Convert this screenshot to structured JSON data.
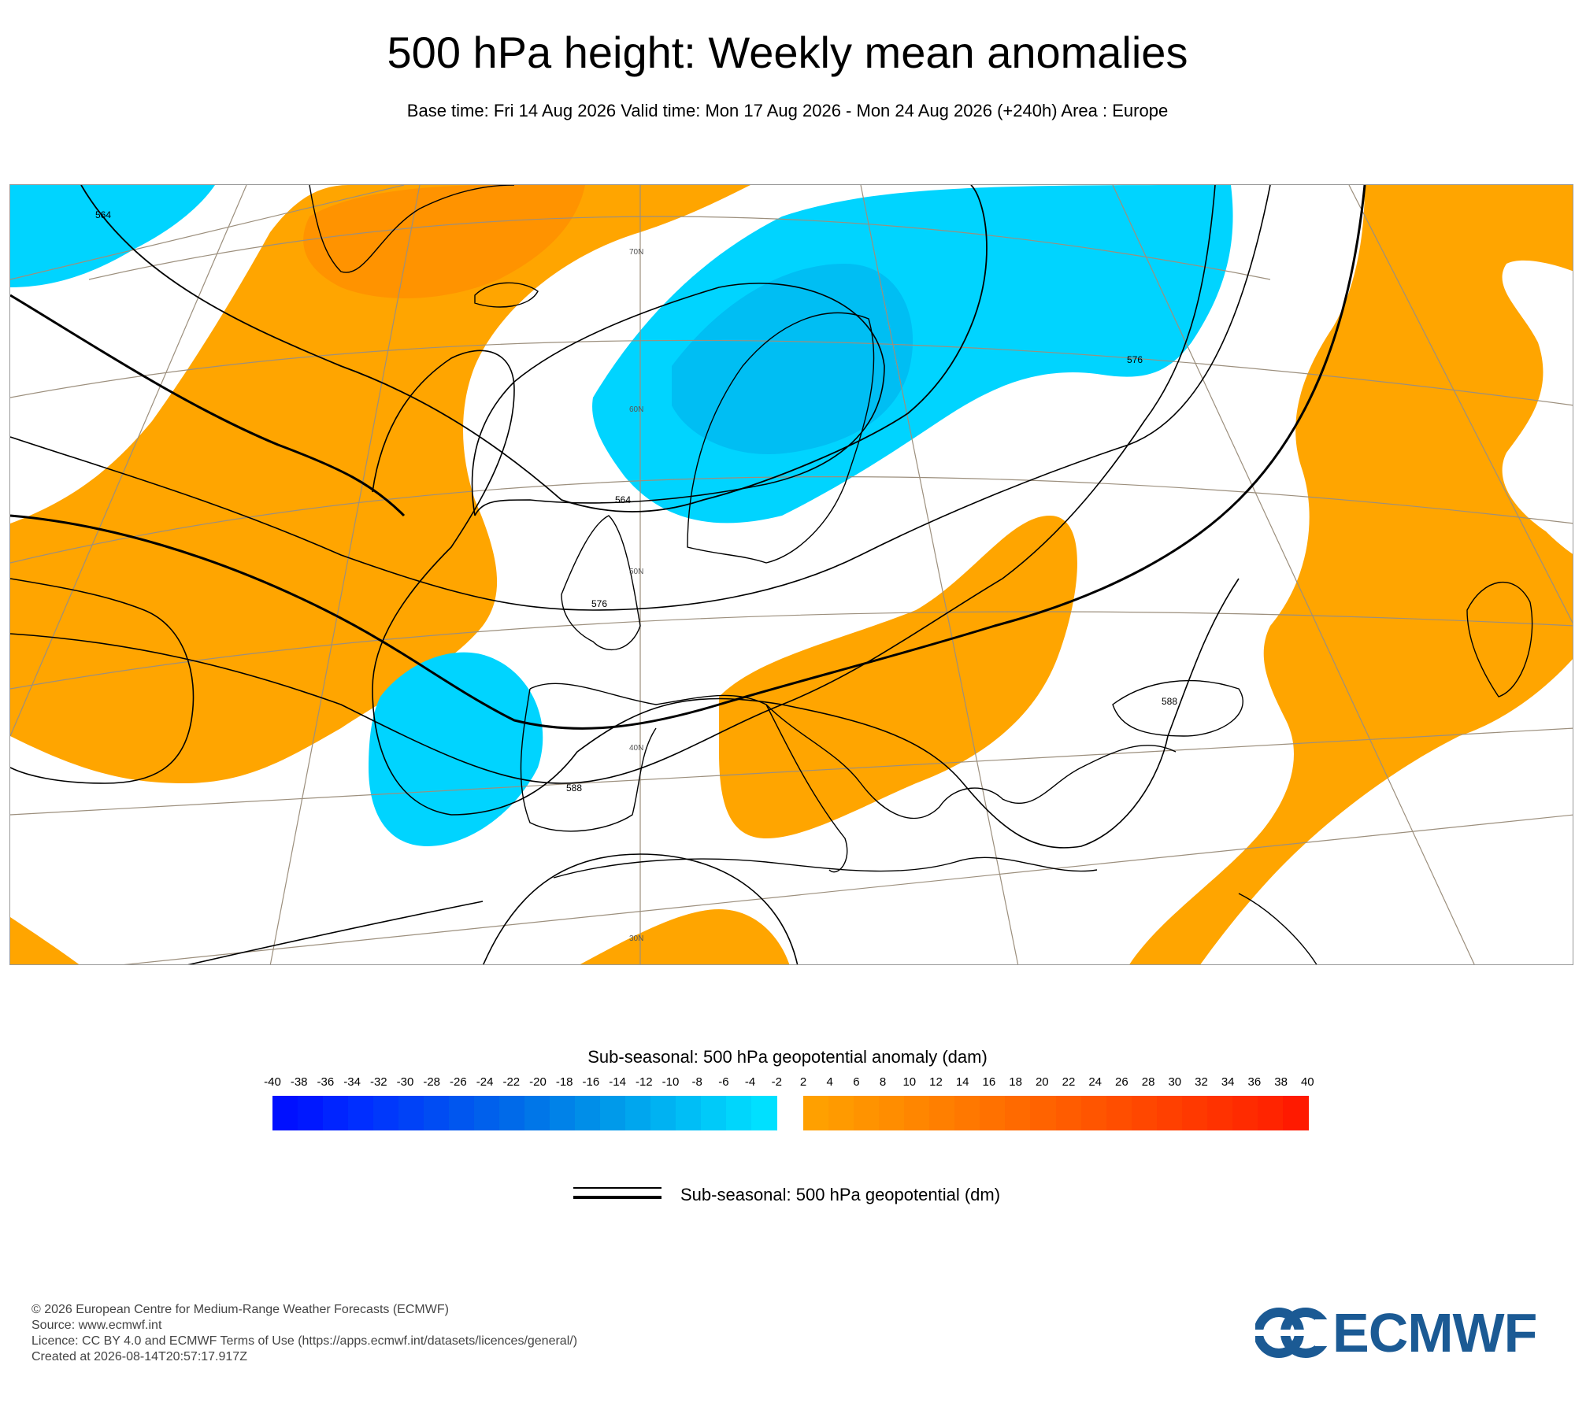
{
  "title": "500 hPa height: Weekly mean anomalies",
  "subtitle": "Base time: Fri 14 Aug 2026 Valid time: Mon 17 Aug 2026 - Mon 24 Aug 2026 (+240h) Area : Europe",
  "map": {
    "latitude_labels": [
      "70N",
      "60N",
      "50N",
      "40N",
      "30N"
    ],
    "contour_labels": [
      "564",
      "576",
      "576",
      "588",
      "588",
      "564"
    ],
    "colors": {
      "negative_anomaly": "#00d4ff",
      "negative_strong": "#00b8f0",
      "positive_anomaly": "#ffa500",
      "positive_strong": "#ff8c00",
      "coast": "#000000",
      "grid": "#9c8f7d"
    }
  },
  "colorbar": {
    "title": "Sub-seasonal: 500 hPa geopotential anomaly (dam)",
    "ticks": [
      "-40",
      "-38",
      "-36",
      "-34",
      "-32",
      "-30",
      "-28",
      "-26",
      "-24",
      "-22",
      "-20",
      "-18",
      "-16",
      "-14",
      "-12",
      "-10",
      "-8",
      "-6",
      "-4",
      "-2",
      "2",
      "4",
      "6",
      "8",
      "10",
      "12",
      "14",
      "16",
      "18",
      "20",
      "22",
      "24",
      "26",
      "28",
      "30",
      "32",
      "34",
      "36",
      "38",
      "40"
    ],
    "negative_colors": [
      "#0010ff",
      "#0018ff",
      "#0024ff",
      "#002eff",
      "#0038fb",
      "#0042f7",
      "#004cf3",
      "#0056ef",
      "#0060ec",
      "#006ae9",
      "#0076e8",
      "#0082e8",
      "#008ee8",
      "#009aea",
      "#00a6ee",
      "#00b2f2",
      "#00bef6",
      "#00caf9",
      "#00d6fc",
      "#00e0ff"
    ],
    "positive_colors": [
      "#ffa000",
      "#ff9a00",
      "#ff9300",
      "#ff8d00",
      "#ff8600",
      "#ff7f00",
      "#ff7800",
      "#ff7100",
      "#ff6a00",
      "#ff6300",
      "#ff5c00",
      "#ff5500",
      "#ff4e00",
      "#ff4700",
      "#ff4000",
      "#ff3900",
      "#ff3200",
      "#ff2b00",
      "#ff2400",
      "#ff1a00"
    ]
  },
  "contour_legend": {
    "label": "Sub-seasonal: 500 hPa geopotential (dm)"
  },
  "footer": {
    "copyright": "© 2026 European Centre for Medium-Range Weather Forecasts (ECMWF)",
    "source": "Source: www.ecmwf.int",
    "licence": "Licence: CC BY 4.0 and ECMWF Terms of Use (https://apps.ecmwf.int/datasets/licences/general/)",
    "created": "Created at 2026-08-14T20:57:17.917Z"
  },
  "logo": {
    "text": "ECMWF",
    "color": "#1b5a94"
  }
}
